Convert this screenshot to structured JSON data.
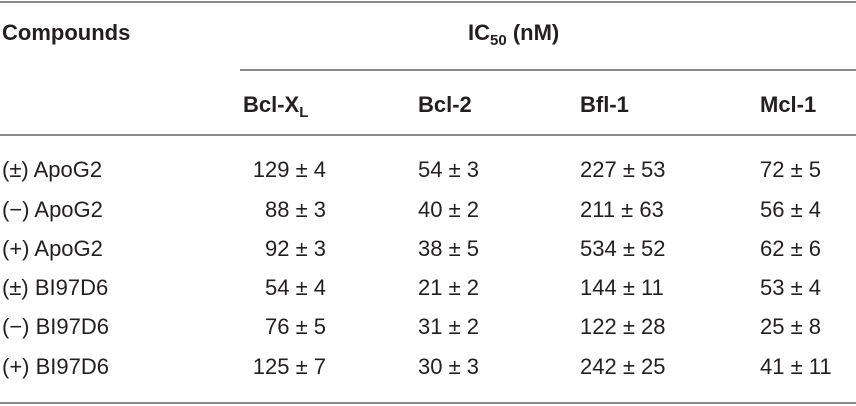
{
  "header": {
    "first": "Compounds",
    "group": {
      "main": "IC",
      "sub": "50",
      "rest": "(nM)"
    },
    "columns": [
      {
        "main": "Bcl-X",
        "sub": "L"
      },
      {
        "main": "Bcl-2"
      },
      {
        "main": "Bfl-1"
      },
      {
        "main": "Mcl-1"
      }
    ]
  },
  "table": {
    "rows": [
      [
        "(±) ApoG2",
        "129 ± 4",
        "54 ± 3",
        "227 ± 53",
        "72 ± 5"
      ],
      [
        "(−) ApoG2",
        "88 ± 3",
        "40 ± 2",
        "211 ± 63",
        "56 ± 4"
      ],
      [
        "(+) ApoG2",
        "92 ± 3",
        "38 ± 5",
        "534 ± 52",
        "62 ± 6"
      ],
      [
        "(±) BI97D6",
        "54 ± 4",
        "21 ± 2",
        "144 ± 11",
        "53 ± 4"
      ],
      [
        "(−) BI97D6",
        "76 ± 5",
        "31 ± 2",
        "122 ± 28",
        "25 ± 8"
      ],
      [
        "(+) BI97D6",
        "125 ± 7",
        "30 ± 3",
        "242 ± 25",
        "41 ± 11"
      ]
    ]
  }
}
